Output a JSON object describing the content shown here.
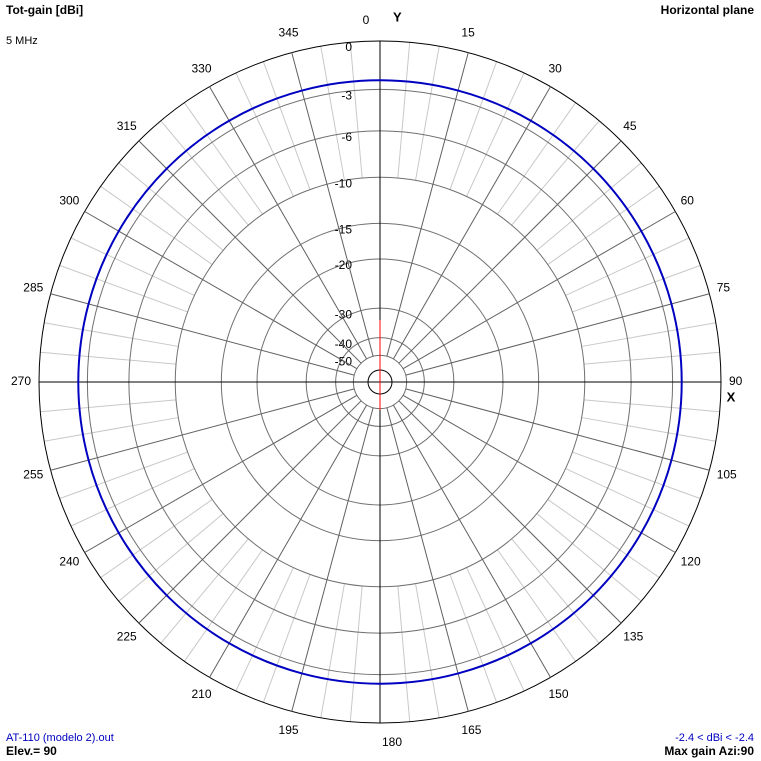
{
  "chart_data": {
    "type": "polar",
    "title": "Tot-gain [dBi]",
    "subtitle": "Horizontal plane",
    "frequency": "5 MHz",
    "x_axis_label": "X",
    "y_axis_label": "Y",
    "angle_ticks": [
      0,
      15,
      30,
      45,
      60,
      75,
      90,
      105,
      120,
      135,
      150,
      165,
      180,
      195,
      210,
      225,
      240,
      255,
      270,
      285,
      300,
      315,
      330,
      345
    ],
    "rlim": [
      -50,
      0
    ],
    "rticks": [
      0,
      -3,
      -6,
      -10,
      -15,
      -20,
      -30,
      -40,
      -50
    ],
    "x": [
      0,
      15,
      30,
      45,
      60,
      75,
      90,
      105,
      120,
      135,
      150,
      165,
      180,
      195,
      210,
      225,
      240,
      255,
      270,
      285,
      300,
      315,
      330,
      345
    ],
    "series": [
      {
        "name": "AT-110 (modelo 2).out",
        "color": "#0000c0",
        "values": [
          -2.4,
          -2.4,
          -2.4,
          -2.4,
          -2.4,
          -2.4,
          -2.4,
          -2.4,
          -2.4,
          -2.4,
          -2.4,
          -2.4,
          -2.4,
          -2.4,
          -2.4,
          -2.4,
          -2.4,
          -2.4,
          -2.4,
          -2.4,
          -2.4,
          -2.4,
          -2.4,
          -2.4
        ]
      }
    ],
    "range_label": "-2.4 < dBi < -2.4",
    "elevation_label": "Elev.= 90",
    "max_gain_label": "Max gain Azi:90"
  }
}
